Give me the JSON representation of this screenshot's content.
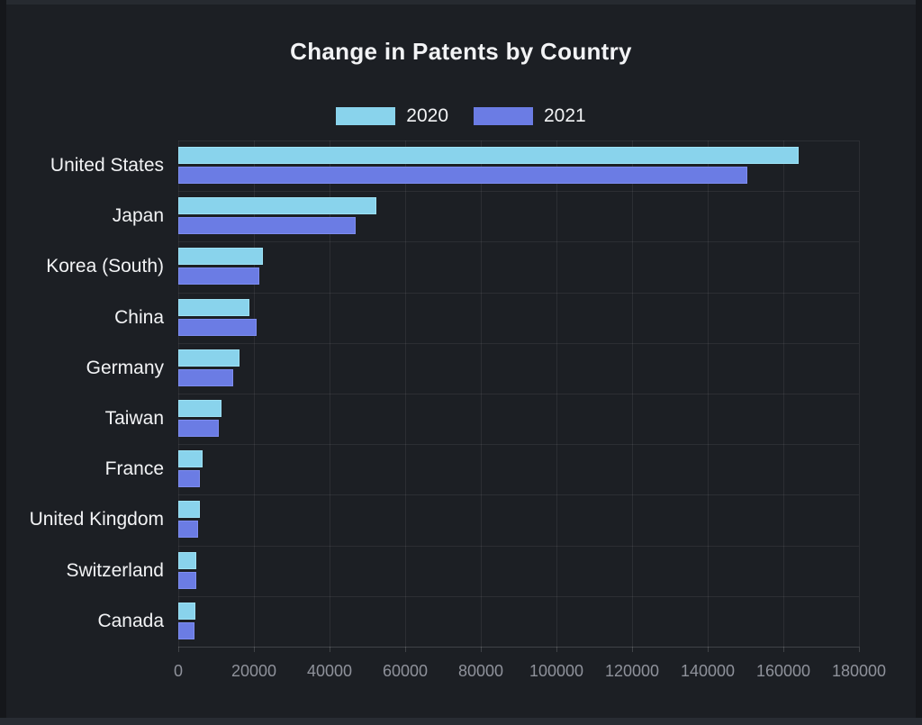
{
  "colors": {
    "background": "#1c1f24",
    "edge_top": "#262a30",
    "edge_bottom": "#282c33",
    "edge_side": "#15171b",
    "gridline": "rgba(255,255,255,0.07)",
    "axis_line": "rgba(255,255,255,0.16)",
    "tick_text": "#8f929b",
    "label_text": "#f2f3f5",
    "series_2020": "#89d3ec",
    "series_2021": "#6b7ce4"
  },
  "chart_data": {
    "type": "bar",
    "orientation": "horizontal",
    "title": "Change in Patents by Country",
    "xlabel": "",
    "ylabel": "",
    "categories": [
      "United States",
      "Japan",
      "Korea (South)",
      "China",
      "Germany",
      "Taiwan",
      "France",
      "United Kingdom",
      "Switzerland",
      "Canada"
    ],
    "series": [
      {
        "name": "2020",
        "color": "#89d3ec",
        "border_color": "#9de1f4",
        "values": [
          164000,
          52300,
          22400,
          18900,
          16300,
          11500,
          6400,
          5600,
          4700,
          4600
        ]
      },
      {
        "name": "2021",
        "color": "#6b7ce4",
        "border_color": "#7e8df0",
        "values": [
          150500,
          47000,
          21500,
          20700,
          14600,
          10600,
          5700,
          5200,
          4700,
          4400
        ]
      }
    ],
    "xlim": [
      0,
      180000
    ],
    "xticks": [
      0,
      20000,
      40000,
      60000,
      80000,
      100000,
      120000,
      140000,
      160000,
      180000
    ],
    "xtick_labels": [
      "0",
      "20000",
      "40000",
      "60000",
      "80000",
      "100000",
      "120000",
      "140000",
      "160000",
      "180000"
    ],
    "grid": true,
    "legend_position": "top"
  }
}
